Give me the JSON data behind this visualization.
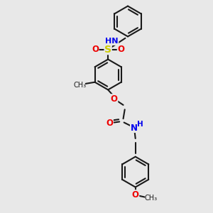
{
  "bg_color": "#e8e8e8",
  "bond_color": "#1a1a1a",
  "N_color": "#0000ee",
  "O_color": "#ee0000",
  "S_color": "#cccc00",
  "figsize": [
    3.0,
    3.0
  ],
  "dpi": 100,
  "xlim": [
    30,
    270
  ],
  "ylim": [
    10,
    290
  ]
}
